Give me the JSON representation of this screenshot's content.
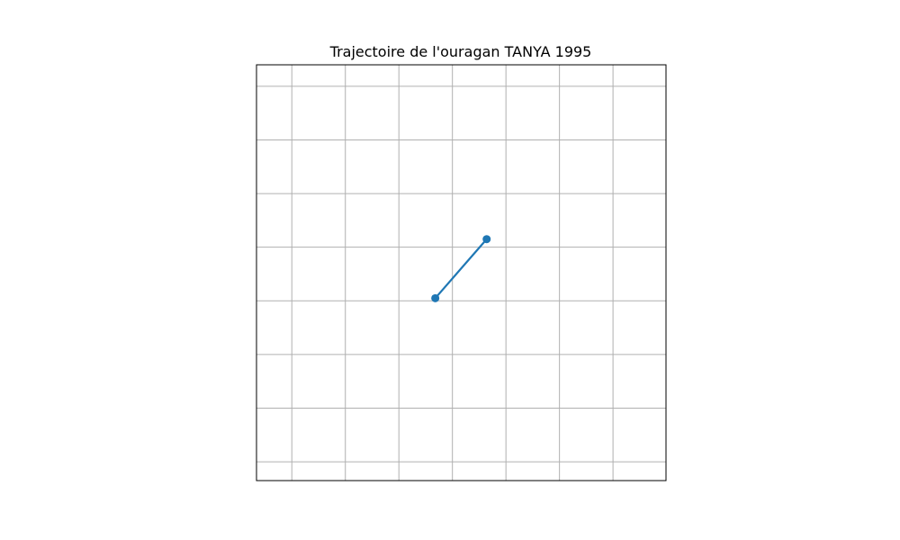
{
  "chart_data": {
    "type": "line",
    "title": "Trajectoire de l'ouragan TANYA 1995",
    "xlabel": "",
    "ylabel": "",
    "xlim": [
      0.6,
      8.25
    ],
    "ylim": [
      0.65,
      8.4
    ],
    "xgrid": [
      1.26,
      2.26,
      3.26,
      4.26,
      5.26,
      6.26,
      7.26,
      8.26
    ],
    "ygrid": [
      1,
      2,
      3,
      4,
      5,
      6,
      7,
      8
    ],
    "grid": true,
    "series": [
      {
        "name": "",
        "x": [
          3.94,
          4.9
        ],
        "y": [
          4.05,
          5.15
        ],
        "color": "#1f77b4"
      }
    ]
  }
}
